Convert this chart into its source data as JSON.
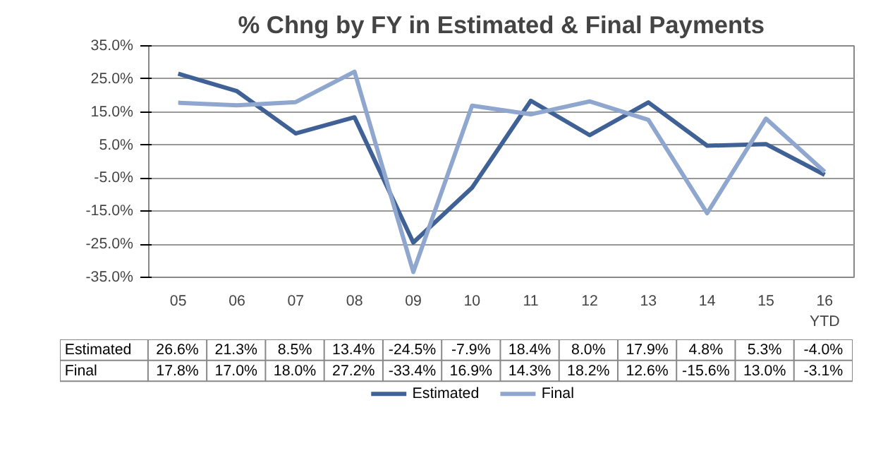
{
  "chart_data": {
    "type": "line",
    "title": "% Chng by FY in Estimated & Final Payments",
    "categories": [
      "05",
      "06",
      "07",
      "08",
      "09",
      "10",
      "11",
      "12",
      "13",
      "14",
      "15",
      "16 YTD"
    ],
    "series": [
      {
        "name": "Estimated",
        "color": "#3f6196",
        "values": [
          26.6,
          21.3,
          8.5,
          13.4,
          -24.5,
          -7.9,
          18.4,
          8.0,
          17.9,
          4.8,
          5.3,
          -4.0
        ],
        "value_labels": [
          "26.6%",
          "21.3%",
          "8.5%",
          "13.4%",
          "-24.5%",
          "-7.9%",
          "18.4%",
          "8.0%",
          "17.9%",
          "4.8%",
          "5.3%",
          "-4.0%"
        ]
      },
      {
        "name": "Final",
        "color": "#8fa7cf",
        "values": [
          17.8,
          17.0,
          18.0,
          27.2,
          -33.4,
          16.9,
          14.3,
          18.2,
          12.6,
          -15.6,
          13.0,
          -3.1
        ],
        "value_labels": [
          "17.8%",
          "17.0%",
          "18.0%",
          "27.2%",
          "-33.4%",
          "16.9%",
          "14.3%",
          "18.2%",
          "12.6%",
          "-15.6%",
          "13.0%",
          "-3.1%"
        ]
      }
    ],
    "ylim": [
      -35,
      35
    ],
    "yticks": [
      {
        "value": 35,
        "label": "35.0%"
      },
      {
        "value": 25,
        "label": "25.0%"
      },
      {
        "value": 15,
        "label": "15.0%"
      },
      {
        "value": 5,
        "label": "5.0%"
      },
      {
        "value": -5,
        "label": "-5.0%"
      },
      {
        "value": -15,
        "label": "-15.0%"
      },
      {
        "value": -25,
        "label": "-25.0%"
      },
      {
        "value": -35,
        "label": "-35.0%"
      }
    ],
    "grid": "y",
    "legend": "bottom"
  }
}
